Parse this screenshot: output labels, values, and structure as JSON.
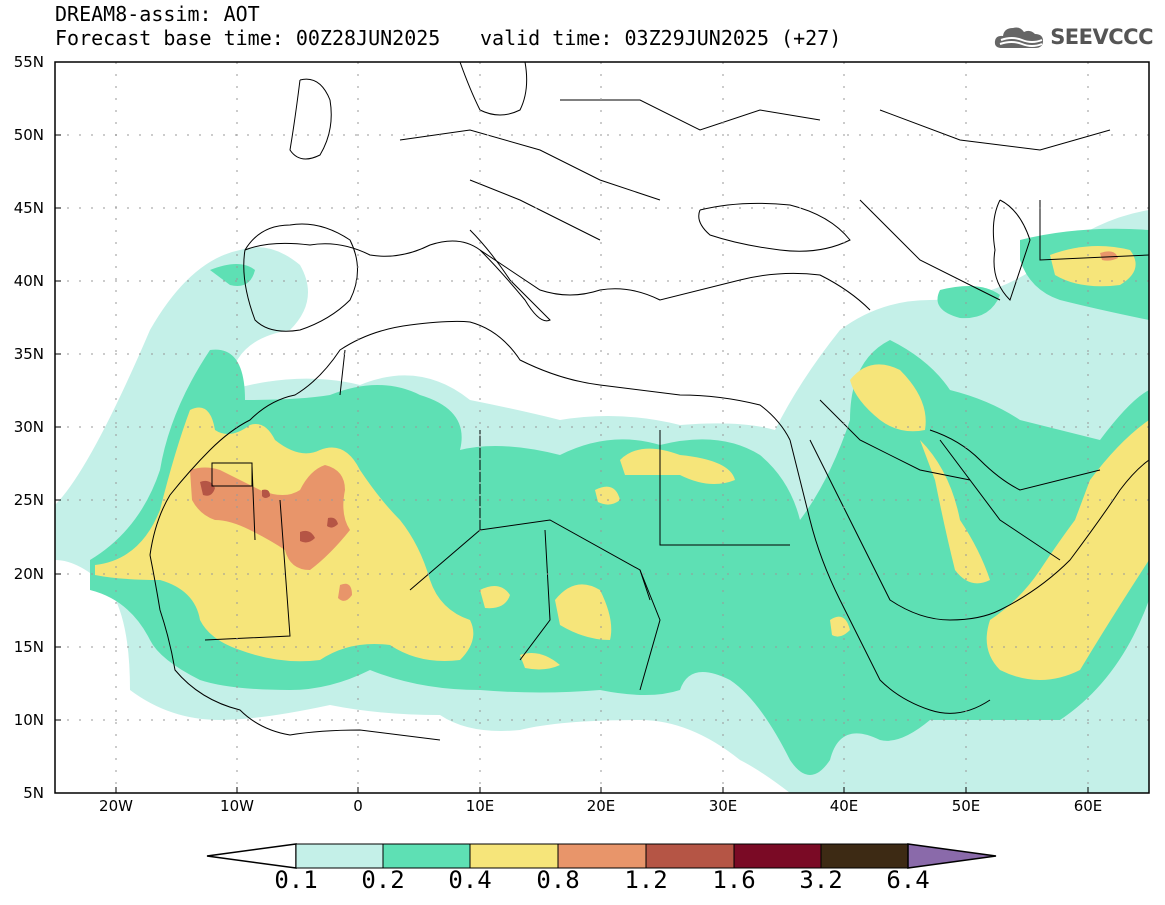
{
  "header": {
    "model_line": "DREAM8-assim: AOT",
    "base_time": "Forecast base time: 00Z28JUN2025",
    "valid_time": "valid time: 03Z29JUN2025 (+27)",
    "logo_text": "SEEVCCC"
  },
  "axes": {
    "latitudes": [
      "55N",
      "50N",
      "45N",
      "40N",
      "35N",
      "30N",
      "25N",
      "20N",
      "15N",
      "10N",
      "5N"
    ],
    "latitude_values": [
      55,
      50,
      45,
      40,
      35,
      30,
      25,
      20,
      15,
      10,
      5
    ],
    "longitudes": [
      "20W",
      "10W",
      "0",
      "10E",
      "20E",
      "30E",
      "40E",
      "50E",
      "60E"
    ],
    "longitude_values": [
      -20,
      -10,
      0,
      10,
      20,
      30,
      40,
      50,
      60
    ],
    "lon_range": [
      -25,
      65
    ],
    "lat_range": [
      5,
      55
    ]
  },
  "colorbar": {
    "labels": [
      "0.1",
      "0.2",
      "0.4",
      "0.8",
      "1.2",
      "1.6",
      "3.2",
      "6.4"
    ],
    "colors": [
      "#ffffff",
      "#c4f0e8",
      "#5ee0b4",
      "#f6e57a",
      "#e8956a",
      "#b55545",
      "#7a0a25",
      "#3d2a14",
      "#8a6aaa"
    ]
  },
  "map": {
    "variable": "AOT",
    "level_colors": {
      "l1": "#c4f0e8",
      "l2": "#5ee0b4",
      "l3": "#f6e57a",
      "l4": "#e8956a",
      "l5": "#b55545"
    }
  }
}
